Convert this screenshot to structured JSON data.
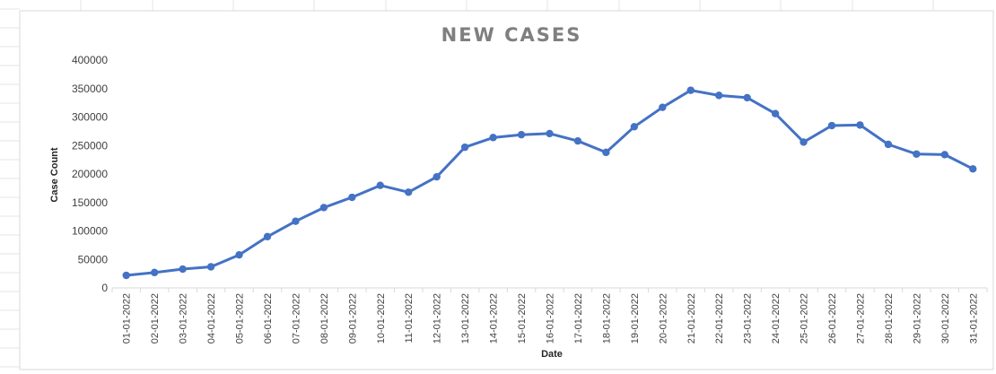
{
  "chart_data": {
    "type": "line",
    "title": "NEW CASES",
    "xlabel": "Date",
    "ylabel": "Case Count",
    "ylim": [
      0,
      400000
    ],
    "yticks": [
      0,
      50000,
      100000,
      150000,
      200000,
      250000,
      300000,
      350000,
      400000
    ],
    "grid": false,
    "legend": "none",
    "colors": {
      "series": "#4472c4",
      "axis": "#d9d9d9",
      "sheet_grid": "#e4e4e4"
    },
    "categories": [
      "01-01-2022",
      "02-01-2022",
      "03-01-2022",
      "04-01-2022",
      "05-01-2022",
      "06-01-2022",
      "07-01-2022",
      "08-01-2022",
      "09-01-2022",
      "10-01-2022",
      "11-01-2022",
      "12-01-2022",
      "13-01-2022",
      "14-01-2022",
      "15-01-2022",
      "16-01-2022",
      "17-01-2022",
      "18-01-2022",
      "19-01-2022",
      "20-01-2022",
      "21-01-2022",
      "22-01-2022",
      "23-01-2022",
      "24-01-2022",
      "25-01-2022",
      "26-01-2022",
      "27-01-2022",
      "28-01-2022",
      "29-01-2022",
      "30-01-2022",
      "31-01-2022"
    ],
    "series": [
      {
        "values": [
          22000,
          27000,
          33000,
          37000,
          58000,
          90000,
          117000,
          141000,
          159000,
          180000,
          168000,
          195000,
          247000,
          264000,
          269000,
          271000,
          258000,
          238000,
          283000,
          317000,
          347000,
          338000,
          334000,
          306000,
          256000,
          285000,
          286000,
          252000,
          235000,
          234000,
          209000
        ]
      }
    ]
  }
}
